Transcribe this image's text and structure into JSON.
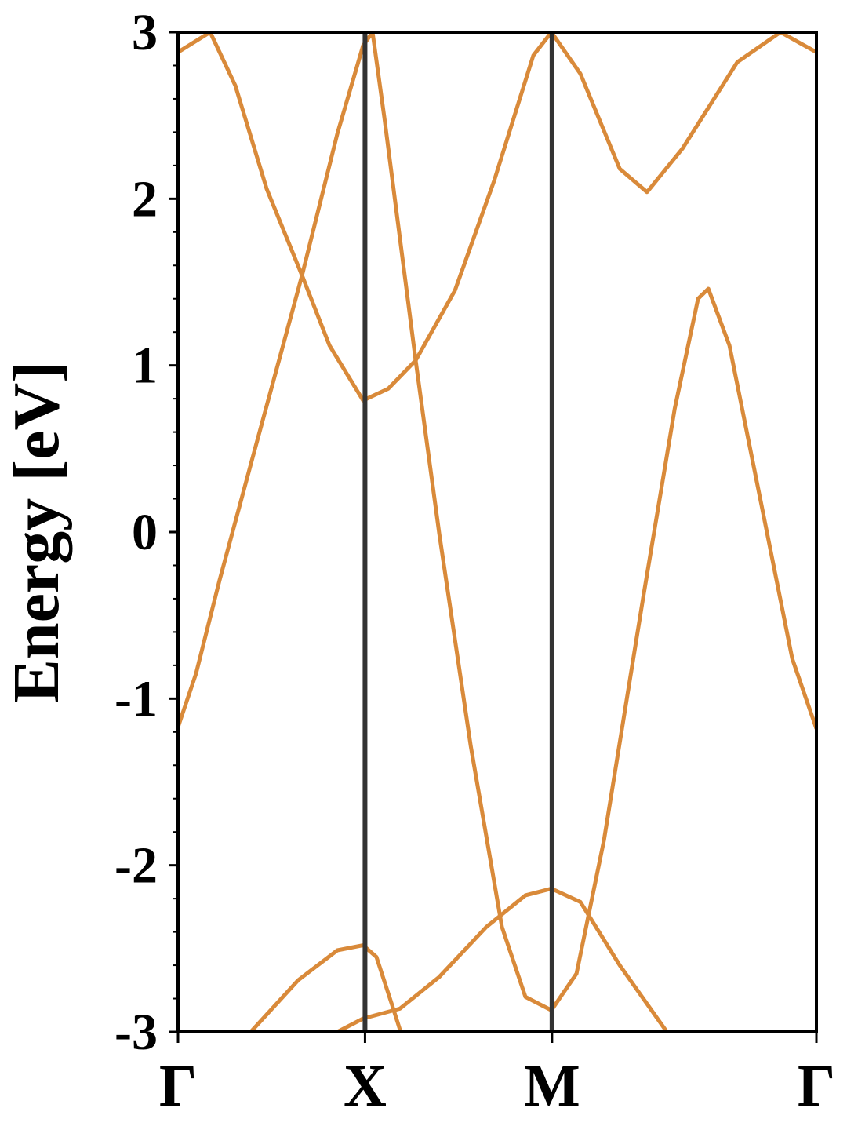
{
  "chart_data": {
    "type": "line",
    "ylabel": "Energy [eV]",
    "xlim": [
      0,
      3.414
    ],
    "ylim": [
      -3,
      3
    ],
    "xticks": [
      {
        "value": 0,
        "label": "Γ"
      },
      {
        "value": 1,
        "label": "X"
      },
      {
        "value": 2,
        "label": "M"
      },
      {
        "value": 3.414,
        "label": "Γ"
      }
    ],
    "yticks": [
      3,
      2,
      1,
      0,
      -1,
      -2,
      -3
    ],
    "yminorticks": [
      2.8,
      2.6,
      2.4,
      2.2,
      1.8,
      1.6,
      1.4,
      1.2,
      0.8,
      0.6,
      0.4,
      0.2,
      -0.2,
      -0.4,
      -0.6,
      -0.8,
      -1.2,
      -1.4,
      -1.6,
      -1.8,
      -2.2,
      -2.4,
      -2.6,
      -2.8
    ],
    "kpath_lines": true,
    "series": [
      {
        "color": "#d98a3a",
        "x": [
          0,
          0.096,
          0.222,
          0.39,
          0.663,
          0.852,
          0.99,
          1.04,
          1.103,
          1.271,
          1.397,
          1.565,
          1.732,
          1.858,
          1.997,
          2.131,
          2.278,
          2.488,
          2.656,
          2.781,
          2.836,
          2.949,
          3.117,
          3.285,
          3.414
        ],
        "values": [
          -1.17,
          -0.85,
          -0.29,
          0.41,
          1.54,
          2.39,
          2.92,
          3.0,
          2.49,
          1.03,
          -0.01,
          -1.28,
          -2.37,
          -2.79,
          -2.87,
          -2.65,
          -1.85,
          -0.39,
          0.74,
          1.4,
          1.46,
          1.12,
          0.18,
          -0.76,
          -1.18
        ]
      },
      {
        "color": "#d98a3a",
        "x": [
          0,
          0.172,
          0.306,
          0.474,
          0.663,
          0.81,
          0.99,
          1.124,
          1.271,
          1.481,
          1.691,
          1.9,
          1.997,
          2.152,
          2.362,
          2.508,
          2.697,
          2.991,
          3.222,
          3.414
        ],
        "values": [
          2.88,
          3.0,
          2.68,
          2.06,
          1.54,
          1.12,
          0.79,
          0.86,
          1.03,
          1.45,
          2.11,
          2.86,
          3.0,
          2.75,
          2.18,
          2.04,
          2.3,
          2.82,
          3.0,
          2.88
        ]
      },
      {
        "color": "#d98a3a",
        "x": [
          0.348,
          0.642,
          0.852,
          0.99,
          1.061,
          1.145,
          1.196
        ],
        "values": [
          -3.05,
          -2.69,
          -2.51,
          -2.48,
          -2.55,
          -2.84,
          -3.02
        ]
      },
      {
        "color": "#d98a3a",
        "x": [
          0.852,
          0.99,
          1.187,
          1.397,
          1.649,
          1.858,
          1.997,
          2.152,
          2.362,
          2.614
        ],
        "values": [
          -3.0,
          -2.92,
          -2.86,
          -2.67,
          -2.37,
          -2.18,
          -2.14,
          -2.22,
          -2.6,
          -3.0
        ]
      }
    ]
  }
}
